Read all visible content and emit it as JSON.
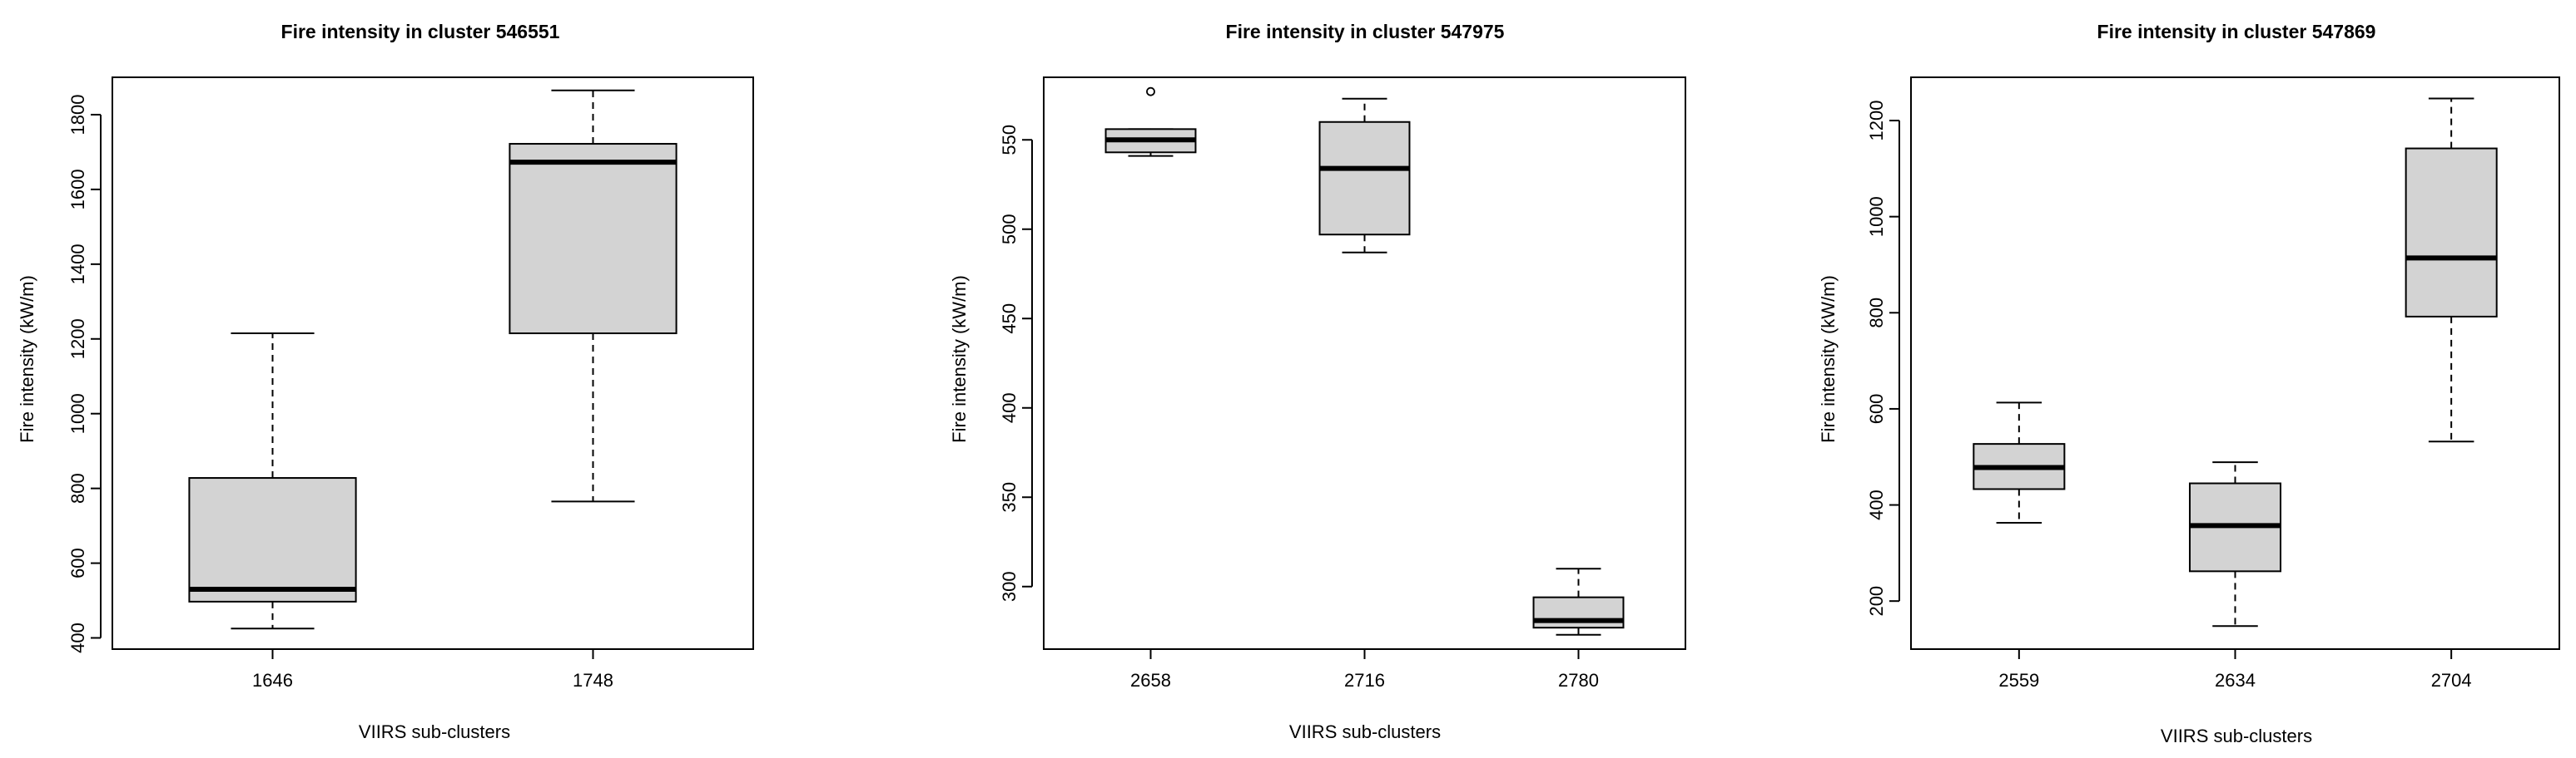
{
  "chart_data": [
    {
      "type": "boxplot",
      "title": "Fire intensity in cluster 546551",
      "xlabel": "VIIRS sub-clusters",
      "ylabel": "Fire intensity (kW/m)",
      "categories": [
        "1646",
        "1748"
      ],
      "ylim": [
        370,
        1900
      ],
      "yticks": [
        400,
        600,
        800,
        1000,
        1200,
        1400,
        1600,
        1800
      ],
      "boxes": [
        {
          "min": 425,
          "q1": 497,
          "median": 530,
          "q3": 828,
          "max": 1215,
          "outliers": []
        },
        {
          "min": 765,
          "q1": 1215,
          "median": 1673,
          "q3": 1722,
          "max": 1865,
          "outliers": []
        }
      ]
    },
    {
      "type": "boxplot",
      "title": "Fire intensity in cluster 547975",
      "xlabel": "VIIRS sub-clusters",
      "ylabel": "Fire intensity (kW/m)",
      "categories": [
        "2658",
        "2716",
        "2780"
      ],
      "ylim": [
        265,
        585
      ],
      "yticks": [
        300,
        350,
        400,
        450,
        500,
        550
      ],
      "boxes": [
        {
          "min": 541,
          "q1": 543,
          "median": 550,
          "q3": 556,
          "max": 556,
          "outliers": [
            577
          ]
        },
        {
          "min": 487,
          "q1": 497,
          "median": 534,
          "q3": 560,
          "max": 573,
          "outliers": []
        },
        {
          "min": 273,
          "q1": 277,
          "median": 281,
          "q3": 294,
          "max": 310,
          "outliers": []
        }
      ]
    },
    {
      "type": "boxplot",
      "title": "Fire intensity in cluster 547869",
      "xlabel": "VIIRS sub-clusters",
      "ylabel": "Fire intensity (kW/m)",
      "categories": [
        "2559",
        "2634",
        "2704"
      ],
      "ylim": [
        100,
        1290
      ],
      "yticks": [
        200,
        400,
        600,
        800,
        1000,
        1200
      ],
      "boxes": [
        {
          "min": 363,
          "q1": 433,
          "median": 478,
          "q3": 527,
          "max": 613,
          "outliers": []
        },
        {
          "min": 148,
          "q1": 262,
          "median": 357,
          "q3": 445,
          "max": 489,
          "outliers": []
        },
        {
          "min": 532,
          "q1": 792,
          "median": 914,
          "q3": 1142,
          "max": 1246,
          "outliers": []
        }
      ]
    }
  ],
  "style": {
    "box_fill": "#d3d3d3",
    "stroke": "#000000"
  }
}
